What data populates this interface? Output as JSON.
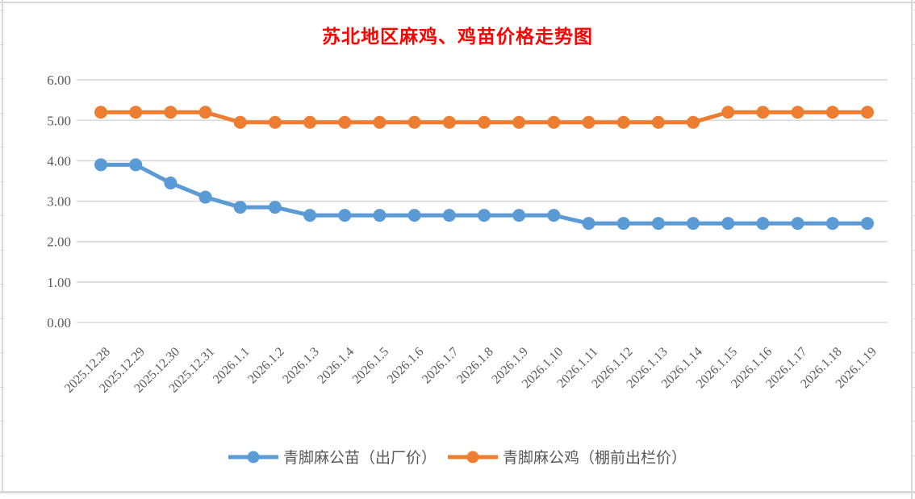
{
  "colors": {
    "title": "#FF0000",
    "axis_text": "#595959",
    "gridline": "#D9D9D9",
    "series_blue": "#5B9BD5",
    "series_orange": "#ED7D31",
    "background": "#FFFFFF",
    "sheet_border": "#D9D9D9"
  },
  "chart_data": {
    "type": "line",
    "title": "苏北地区麻鸡、鸡苗价格走势图",
    "xlabel": "",
    "ylabel": "",
    "ylim": [
      0,
      6
    ],
    "ytick_step": 1,
    "ytick_labels": [
      "0.00",
      "1.00",
      "2.00",
      "3.00",
      "4.00",
      "5.00",
      "6.00"
    ],
    "grid": true,
    "legend_position": "bottom",
    "categories": [
      "2025.12.28",
      "2025.12.29",
      "2025.12.30",
      "2025.12.31",
      "2026.1.1",
      "2026.1.2",
      "2026.1.3",
      "2026.1.4",
      "2026.1.5",
      "2026.1.6",
      "2026.1.7",
      "2026.1.8",
      "2026.1.9",
      "2026.1.10",
      "2026.1.11",
      "2026.1.12",
      "2026.1.13",
      "2026.1.14",
      "2026.1.15",
      "2026.1.16",
      "2026.1.17",
      "2026.1.18",
      "2026.1.19"
    ],
    "series": [
      {
        "name": "青脚麻公苗（出厂价）",
        "color": "#5B9BD5",
        "values": [
          3.9,
          3.9,
          3.45,
          3.1,
          2.85,
          2.85,
          2.65,
          2.65,
          2.65,
          2.65,
          2.65,
          2.65,
          2.65,
          2.65,
          2.45,
          2.45,
          2.45,
          2.45,
          2.45,
          2.45,
          2.45,
          2.45,
          2.45
        ]
      },
      {
        "name": "青脚麻公鸡（棚前出栏价）",
        "color": "#ED7D31",
        "values": [
          5.2,
          5.2,
          5.2,
          5.2,
          4.95,
          4.95,
          4.95,
          4.95,
          4.95,
          4.95,
          4.95,
          4.95,
          4.95,
          4.95,
          4.95,
          4.95,
          4.95,
          4.95,
          5.2,
          5.2,
          5.2,
          5.2,
          5.2
        ]
      }
    ]
  }
}
